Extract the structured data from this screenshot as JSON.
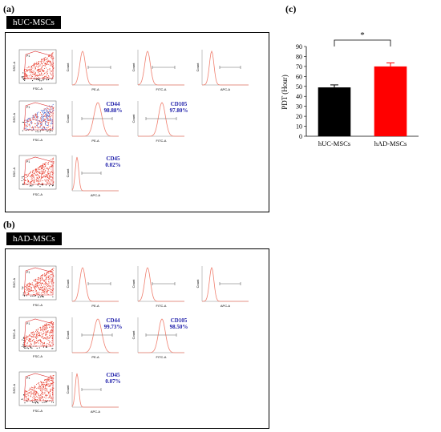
{
  "panels": {
    "a": {
      "label": "(a)",
      "tag": "hUC-MSCs"
    },
    "b": {
      "label": "(b)",
      "tag": "hAD-MSCs"
    },
    "c": {
      "label": "(c)"
    }
  },
  "flow": {
    "a": {
      "rows": [
        {
          "scatter": {
            "xlabel": "FSC-A",
            "ylabel": "SSC-A",
            "gate": "P1"
          },
          "hists": [
            {
              "xlabel": "PE-A",
              "ylabel": "Count"
            },
            {
              "xlabel": "FITC-A",
              "ylabel": "Count"
            },
            {
              "xlabel": "APC-A",
              "ylabel": "Count"
            }
          ]
        },
        {
          "scatter": {
            "xlabel": "FSC-A",
            "ylabel": "SSC-A",
            "gate": "P1"
          },
          "hists": [
            {
              "xlabel": "PE-A",
              "ylabel": "Count",
              "marker": "CD44",
              "percent": "98.88%"
            },
            {
              "xlabel": "FITC-A",
              "ylabel": "Count",
              "marker": "CD105",
              "percent": "97.80%"
            }
          ]
        },
        {
          "scatter": {
            "xlabel": "FSC-A",
            "ylabel": "SSC-A",
            "gate": "P1"
          },
          "hists": [
            {
              "xlabel": "APC-A",
              "ylabel": "Count",
              "marker": "CD45",
              "percent": "0.02%"
            }
          ]
        }
      ]
    },
    "b": {
      "rows": [
        {
          "scatter": {
            "xlabel": "FSC-A",
            "ylabel": "SSC-A",
            "gate": "P1"
          },
          "hists": [
            {
              "xlabel": "PE-A",
              "ylabel": "Count"
            },
            {
              "xlabel": "FITC-A",
              "ylabel": "Count"
            },
            {
              "xlabel": "APC-A",
              "ylabel": "Count"
            }
          ]
        },
        {
          "scatter": {
            "xlabel": "FSC-A",
            "ylabel": "SSC-A",
            "gate": "P1"
          },
          "hists": [
            {
              "xlabel": "PE-A",
              "ylabel": "Count",
              "marker": "CD44",
              "percent": "99.73%"
            },
            {
              "xlabel": "FITC-A",
              "ylabel": "Count",
              "marker": "CD105",
              "percent": "98.50%"
            }
          ]
        },
        {
          "scatter": {
            "xlabel": "FSC-A",
            "ylabel": "SSC-A",
            "gate": "P1"
          },
          "hists": [
            {
              "xlabel": "APC-A",
              "ylabel": "Count",
              "marker": "CD45",
              "percent": "0.07%"
            }
          ]
        }
      ]
    }
  },
  "chart_data": {
    "type": "bar",
    "title": "",
    "xlabel": "",
    "ylabel": "PDT (Hour)",
    "categories": [
      "hUC-MSCs",
      "hAD-MSCs"
    ],
    "values": [
      49,
      70
    ],
    "errors": [
      2.5,
      3.5
    ],
    "colors": [
      "#000000",
      "#ff0000"
    ],
    "ylim": [
      0,
      90
    ],
    "yticks": [
      0,
      10,
      20,
      30,
      40,
      50,
      60,
      70,
      80,
      90
    ],
    "significance": "*",
    "grid": false
  },
  "colors": {
    "histogram": "#f08070",
    "marker_text": "#1a1aa8"
  }
}
